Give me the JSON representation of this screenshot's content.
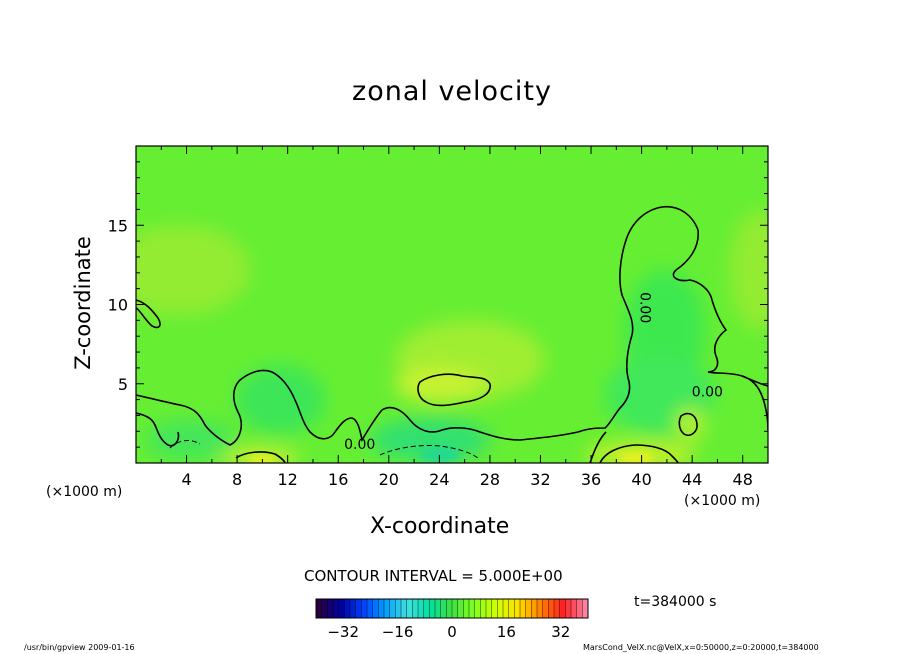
{
  "chart_data": {
    "type": "heatmap",
    "title": "zonal velocity",
    "xlabel": "X-coordinate",
    "ylabel": "Z-coordinate",
    "x_unit": "(×1000 m)",
    "x_unit_right": "(×1000 m)",
    "xlim": [
      0,
      50
    ],
    "ylim": [
      0,
      20
    ],
    "x_ticks": [
      "4",
      "8",
      "12",
      "16",
      "20",
      "24",
      "28",
      "32",
      "36",
      "40",
      "44",
      "48"
    ],
    "y_ticks": [
      "5",
      "10",
      "15"
    ],
    "contour_interval_text": "CONTOUR INTERVAL = 5.000E+00",
    "contour_labels": [
      {
        "text": "0.00",
        "x": 17.7,
        "z": 1.2
      },
      {
        "text": "0.00",
        "x": 40.3,
        "z": 9.8
      },
      {
        "text": "0.00",
        "x": 45.2,
        "z": 4.5
      }
    ],
    "colorbar": {
      "range": [
        -40,
        40
      ],
      "ticks": [
        "−32",
        "−16",
        "0",
        "16",
        "32"
      ],
      "colors": [
        "#2a0040",
        "#0000a0",
        "#0040ff",
        "#00a0ff",
        "#40e0e0",
        "#00e0a0",
        "#40e040",
        "#80ff20",
        "#d0ff00",
        "#ffe000",
        "#ff8000",
        "#ff2020",
        "#ff80a0"
      ]
    },
    "time_label": "t=384000 s",
    "background_value_color": "#66ee33",
    "grid": false
  },
  "footer": {
    "left": "/usr/bin/gpview   2009-01-16",
    "right": "MarsCond_VelX.nc@VelX,x=0:50000,z=0:20000,t=384000"
  }
}
